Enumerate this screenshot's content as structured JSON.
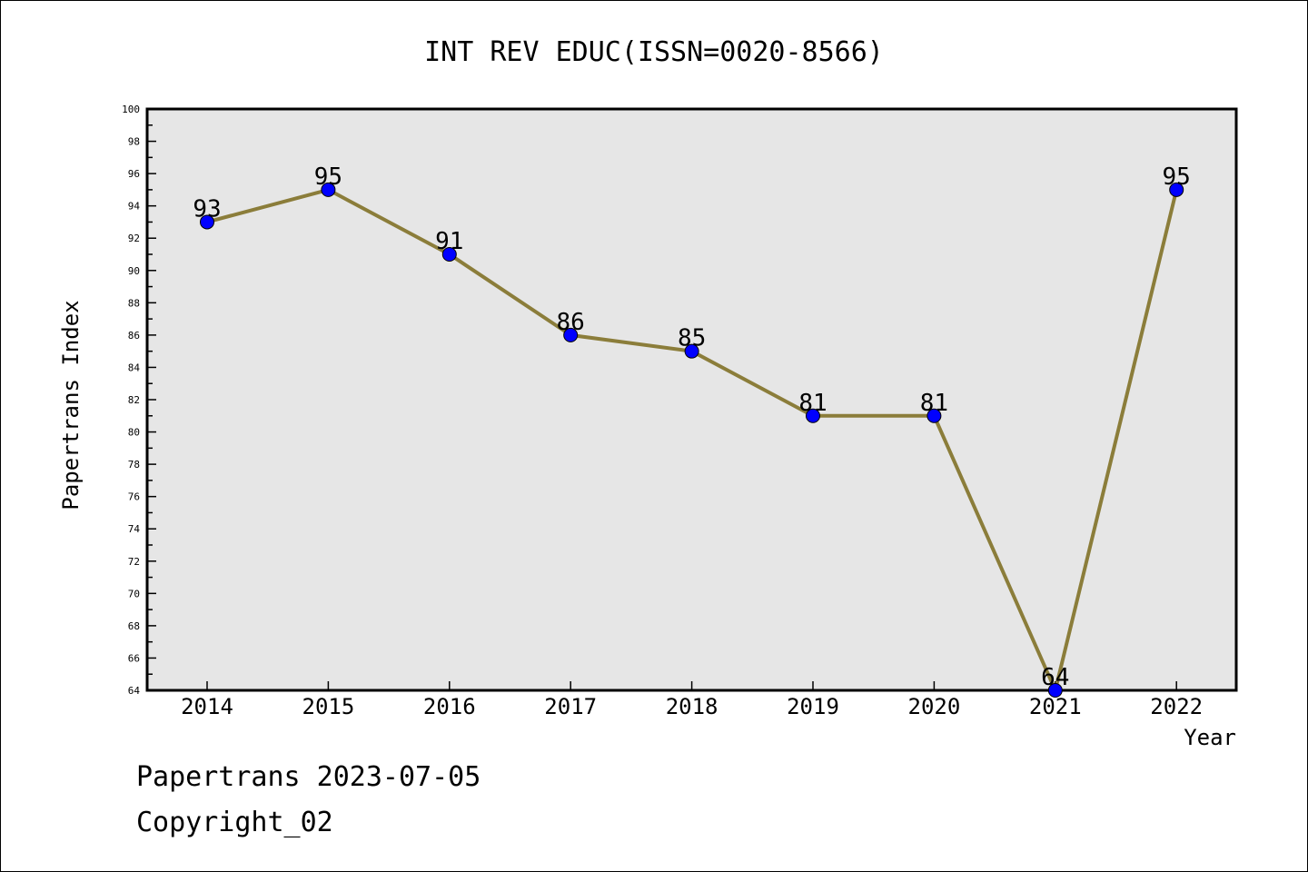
{
  "chart_data": {
    "type": "line",
    "title": "INT REV EDUC(ISSN=0020-8566)",
    "xlabel": "Year",
    "ylabel": "Papertrans Index",
    "x": [
      "2014",
      "2015",
      "2016",
      "2017",
      "2018",
      "2019",
      "2020",
      "2021",
      "2022"
    ],
    "values": [
      93,
      95,
      91,
      86,
      85,
      81,
      81,
      64,
      95
    ],
    "ylim": [
      64,
      100
    ],
    "ytick_step": 2,
    "grid": false,
    "line_color": "#8b7d3a",
    "marker_color": "#0000ff",
    "plot_background": "#e6e6e6"
  },
  "footer": {
    "line1": "Papertrans 2023-07-05",
    "line2": "Copyright_02"
  }
}
